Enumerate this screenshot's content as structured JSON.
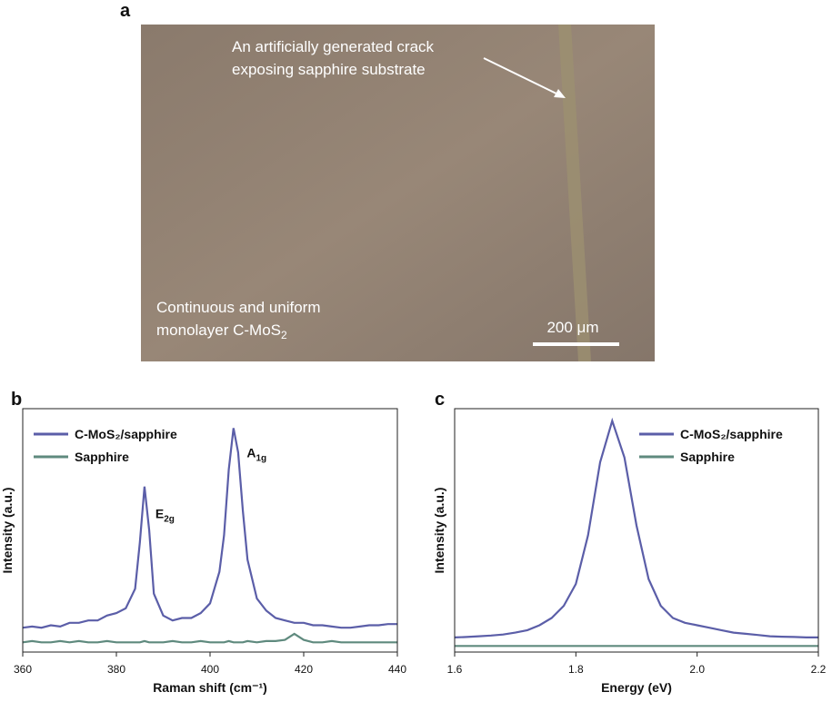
{
  "micrograph": {
    "panel_label": "a",
    "annotation": [
      "An artificially generated crack",
      "exposing sapphire substrate"
    ],
    "caption": [
      "Continuous and uniform",
      {
        "base": "monolayer C-MoS",
        "sub": "2"
      }
    ],
    "scale_bar": "200 μm"
  },
  "chart_data": [
    {
      "type": "line",
      "panel_label": "b",
      "x_label": "Raman shift (cm⁻¹)",
      "y_label": "Intensity (a.u.)",
      "x": [
        360,
        362,
        364,
        366,
        368,
        370,
        372,
        374,
        376,
        378,
        380,
        382,
        384,
        385,
        386,
        387,
        388,
        390,
        392,
        394,
        396,
        398,
        400,
        402,
        403,
        404,
        405,
        406,
        407,
        408,
        410,
        412,
        414,
        416,
        418,
        420,
        422,
        424,
        426,
        428,
        430,
        432,
        434,
        436,
        438,
        440
      ],
      "series": [
        {
          "name": "C-MoS₂/sapphire",
          "color": "#5b5ea8",
          "values": [
            10,
            10.5,
            10,
            11,
            10.5,
            12,
            12,
            13,
            13,
            15,
            16,
            18,
            26,
            45,
            68,
            50,
            24,
            15,
            13,
            14,
            14,
            16,
            20,
            33,
            48,
            75,
            92,
            82,
            58,
            38,
            22,
            17,
            14,
            13,
            12,
            12,
            11,
            11,
            10.5,
            10,
            10,
            10.5,
            11,
            11,
            11.5,
            11.5
          ]
        },
        {
          "name": "Sapphire",
          "color": "#5f8a7e",
          "values": [
            4,
            4.5,
            4,
            4,
            4.5,
            4,
            4.5,
            4,
            4,
            4.5,
            4,
            4,
            4,
            4,
            4.5,
            4,
            4,
            4,
            4.5,
            4,
            4,
            4.5,
            4,
            4,
            4,
            4.5,
            4,
            4,
            4,
            4.5,
            4,
            4.5,
            4.5,
            5,
            7.5,
            5,
            4,
            4,
            4.5,
            4,
            4,
            4,
            4,
            4,
            4,
            4
          ]
        }
      ],
      "annotations": [
        {
          "x": 386,
          "y": 55,
          "base": "E",
          "sub": "2g"
        },
        {
          "x": 405.5,
          "y": 80,
          "base": "A",
          "sub": "1g"
        }
      ],
      "xlim": [
        360,
        440
      ],
      "xticks": [
        360,
        380,
        400,
        420,
        440
      ],
      "ylim": [
        0,
        100
      ]
    },
    {
      "type": "line",
      "panel_label": "c",
      "x_label": "Energy (eV)",
      "y_label": "Intensity (a.u.)",
      "x": [
        1.6,
        1.62,
        1.64,
        1.66,
        1.68,
        1.7,
        1.72,
        1.74,
        1.76,
        1.78,
        1.8,
        1.82,
        1.84,
        1.86,
        1.88,
        1.9,
        1.92,
        1.94,
        1.96,
        1.98,
        2.0,
        2.02,
        2.04,
        2.06,
        2.08,
        2.1,
        2.12,
        2.14,
        2.16,
        2.18,
        2.2
      ],
      "series": [
        {
          "name": "C-MoS₂/sapphire",
          "color": "#5b5ea8",
          "values": [
            6,
            6.2,
            6.5,
            6.8,
            7.2,
            8,
            9,
            11,
            14,
            19,
            28,
            48,
            78,
            95,
            80,
            52,
            30,
            19,
            14,
            12,
            11,
            10,
            9,
            8,
            7.5,
            7,
            6.5,
            6.3,
            6.2,
            6,
            6
          ]
        },
        {
          "name": "Sapphire",
          "color": "#5f8a7e",
          "values": [
            2.5,
            2.5,
            2.5,
            2.5,
            2.5,
            2.5,
            2.5,
            2.5,
            2.5,
            2.5,
            2.5,
            2.5,
            2.5,
            2.5,
            2.5,
            2.5,
            2.5,
            2.5,
            2.5,
            2.5,
            2.5,
            2.5,
            2.5,
            2.5,
            2.5,
            2.5,
            2.5,
            2.5,
            2.5,
            2.5,
            2.5
          ]
        }
      ],
      "xlim": [
        1.6,
        2.2
      ],
      "xticks": [
        1.6,
        1.8,
        {
          "value": 2.0,
          "label": "2.0"
        },
        2.2
      ],
      "ylim": [
        0,
        100
      ]
    }
  ]
}
